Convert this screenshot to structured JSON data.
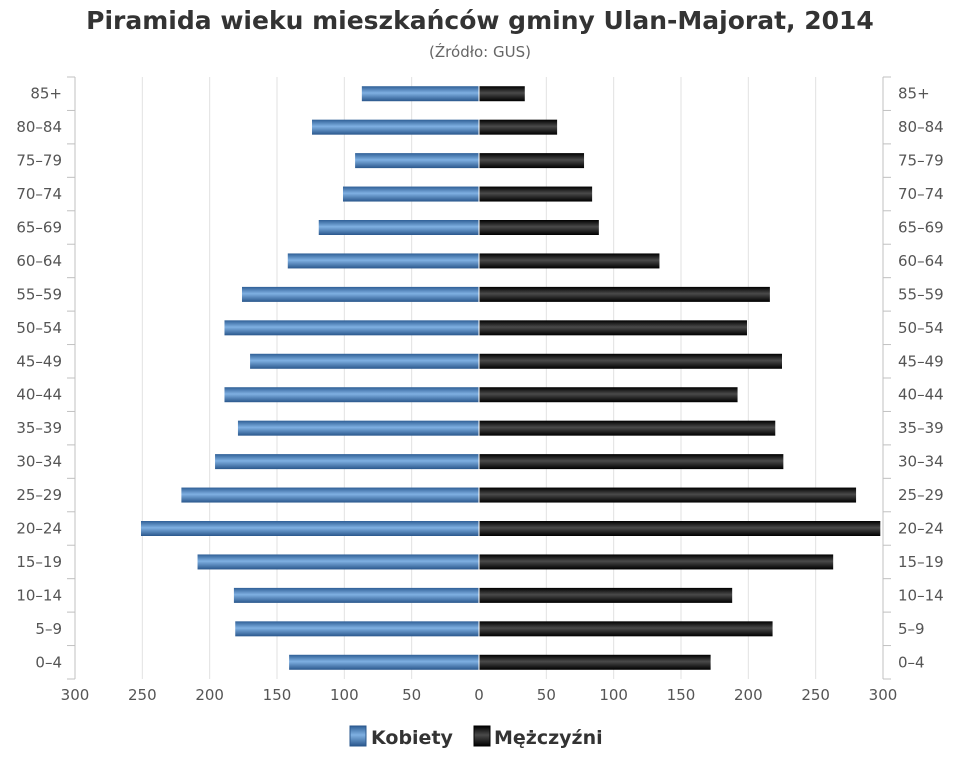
{
  "chart_data": {
    "type": "bar",
    "orientation": "horizontal-pyramid",
    "title": "Piramida wieku mieszkańców gminy Ulan-Majorat, 2014",
    "subtitle": "(Źródło: GUS)",
    "categories": [
      "85+",
      "80–84",
      "75–79",
      "70–74",
      "65–69",
      "60–64",
      "55–59",
      "50–54",
      "45–49",
      "40–44",
      "35–39",
      "30–34",
      "25–29",
      "20–24",
      "15–19",
      "10–14",
      "5–9",
      "0–4"
    ],
    "series": [
      {
        "name": "Kobiety",
        "color": "#4a86c5",
        "values": [
          87,
          124,
          92,
          101,
          119,
          142,
          176,
          189,
          170,
          189,
          179,
          196,
          221,
          251,
          209,
          182,
          181,
          141
        ]
      },
      {
        "name": "Mężczyźni",
        "color": "#111111",
        "values": [
          34,
          58,
          78,
          84,
          89,
          134,
          216,
          199,
          225,
          192,
          220,
          226,
          280,
          298,
          263,
          188,
          218,
          172
        ]
      }
    ],
    "xlim": [
      -300,
      300
    ],
    "x_ticks": [
      "300",
      "250",
      "200",
      "150",
      "100",
      "50",
      "0",
      "50",
      "100",
      "150",
      "200",
      "250",
      "300"
    ],
    "grid": true,
    "legend_position": "bottom-center"
  }
}
